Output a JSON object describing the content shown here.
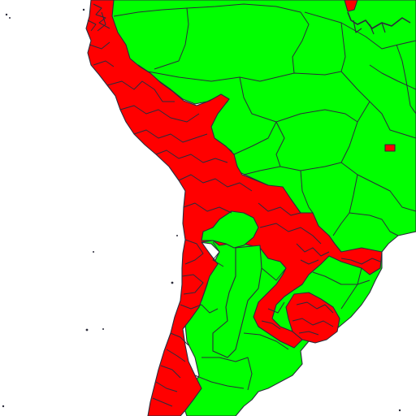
{
  "map": {
    "colors": {
      "background": "#ffffff",
      "category_a": "#00ff00",
      "category_b": "#ff0000",
      "boundary": "#2b2b3a"
    },
    "icons": [
      "choropleth-map"
    ]
  }
}
